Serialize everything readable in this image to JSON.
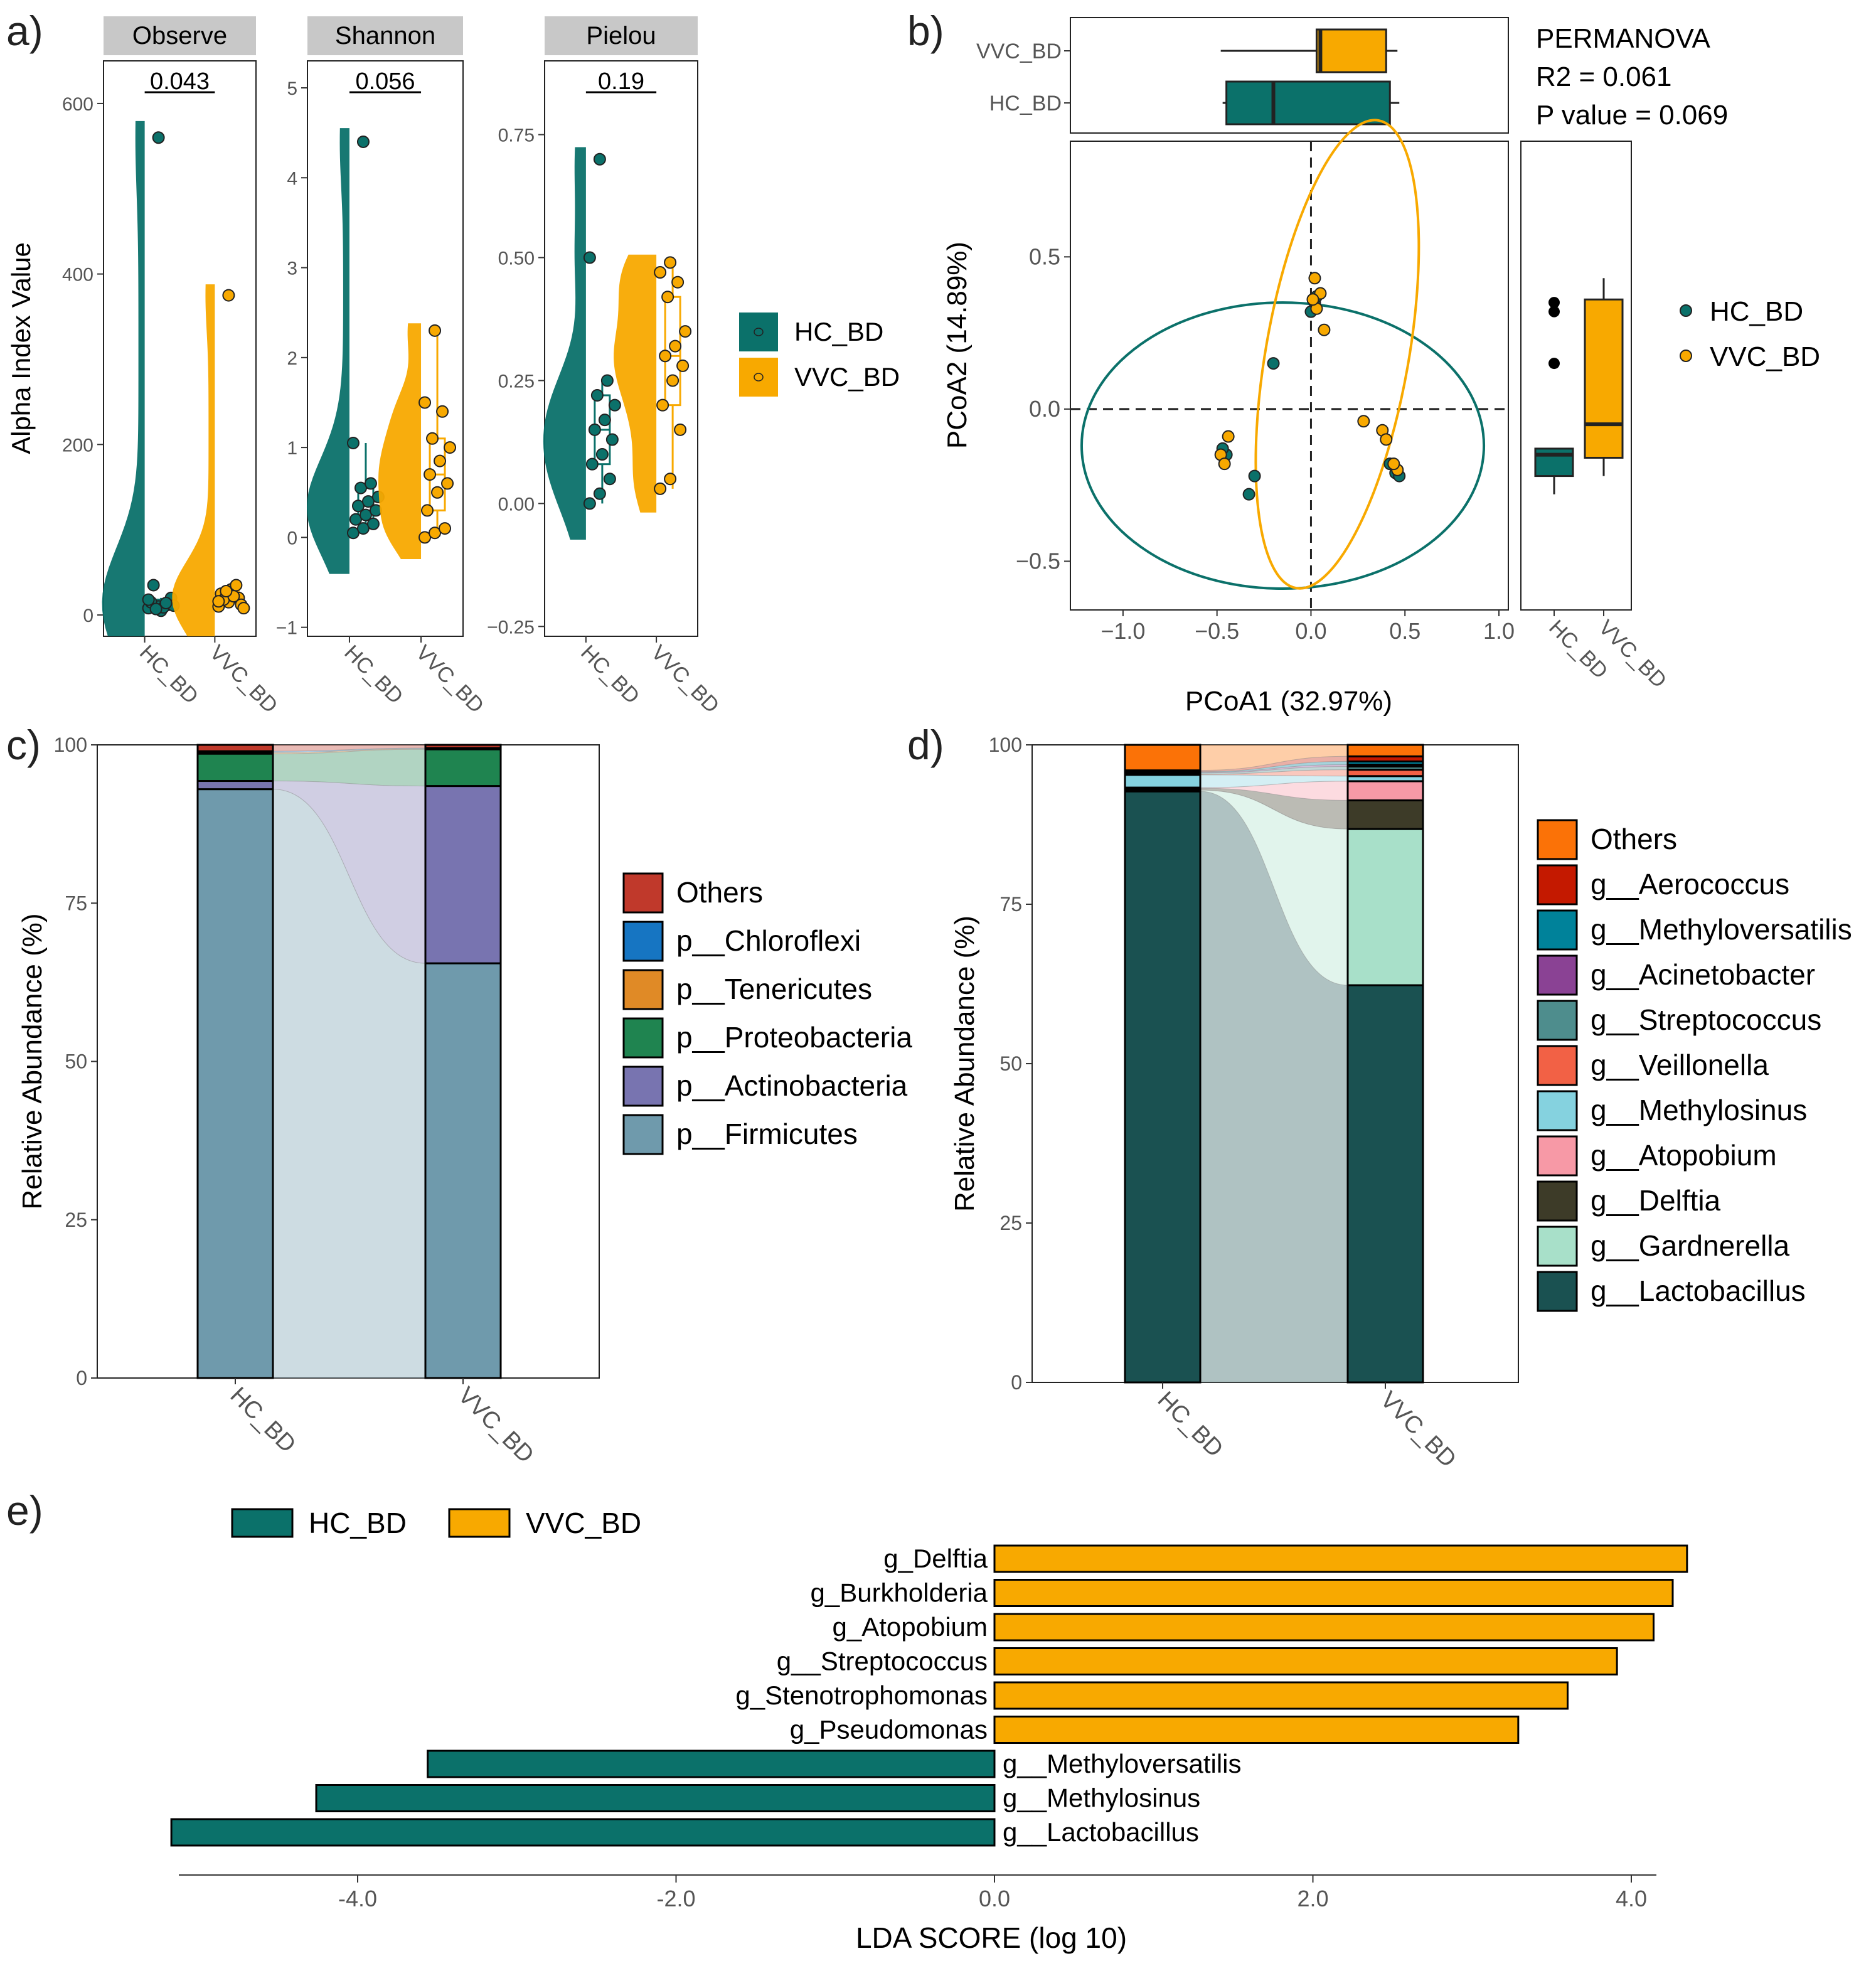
{
  "colors": {
    "hc": "#0B716A",
    "vvc": "#F8A900",
    "axis": "#333333",
    "strip": "#C8C8C8"
  },
  "panel_labels": [
    "a)",
    "b)",
    "c)",
    "d)",
    "e)"
  ],
  "chart_data": [
    {
      "id": "a",
      "type": "violin-box",
      "ylabel": "Alpha Index Value",
      "categories": [
        "HC_BD",
        "VVC_BD"
      ],
      "legend": [
        "HC_BD",
        "VVC_BD"
      ],
      "facets": [
        {
          "title": "Observe",
          "pvalue": "0.043",
          "ylim": [
            -25,
            650
          ],
          "ticks": [
            0,
            200,
            400,
            600
          ],
          "tick_labels": [
            "0",
            "200",
            "400",
            "600"
          ],
          "HC_BD": [
            8,
            10,
            12,
            15,
            5,
            20,
            35,
            9,
            11,
            7,
            14,
            18,
            560
          ],
          "VVC_BD": [
            10,
            15,
            20,
            25,
            30,
            12,
            18,
            22,
            8,
            28,
            35,
            16,
            375
          ]
        },
        {
          "title": "Shannon",
          "pvalue": "0.056",
          "ylim": [
            -1.1,
            5.3
          ],
          "ticks": [
            -1,
            0,
            1,
            2,
            3,
            4,
            5
          ],
          "tick_labels": [
            "−1",
            "0",
            "1",
            "2",
            "3",
            "4",
            "5"
          ],
          "HC_BD": [
            0.05,
            0.1,
            0.15,
            0.2,
            0.25,
            0.3,
            0.35,
            0.4,
            0.45,
            0.55,
            0.6,
            1.05,
            4.4
          ],
          "VVC_BD": [
            0.0,
            0.05,
            0.1,
            0.3,
            0.5,
            0.6,
            0.7,
            0.85,
            1.0,
            1.1,
            1.4,
            1.5,
            2.3
          ]
        },
        {
          "title": "Pielou",
          "pvalue": "0.19",
          "ylim": [
            -0.27,
            0.9
          ],
          "ticks": [
            -0.25,
            0,
            0.25,
            0.5,
            0.75
          ],
          "tick_labels": [
            "−0.25",
            "0.00",
            "0.25",
            "0.50",
            "0.75"
          ],
          "HC_BD": [
            0.0,
            0.02,
            0.05,
            0.08,
            0.1,
            0.13,
            0.15,
            0.17,
            0.2,
            0.22,
            0.25,
            0.5,
            0.7
          ],
          "VVC_BD": [
            0.03,
            0.05,
            0.15,
            0.2,
            0.25,
            0.28,
            0.3,
            0.32,
            0.35,
            0.42,
            0.45,
            0.47,
            0.49
          ]
        }
      ]
    },
    {
      "id": "b",
      "type": "scatter",
      "xlabel": "PCoA1 (32.97%)",
      "ylabel": "PCoA2 (14.89%)",
      "xlim": [
        -1.28,
        1.05
      ],
      "ylim": [
        -0.66,
        0.88
      ],
      "xticks": [
        -1,
        -0.5,
        0,
        0.5,
        1
      ],
      "xtick_labels": [
        "−1.0",
        "−0.5",
        "0.0",
        "0.5",
        "1.0"
      ],
      "yticks": [
        -0.5,
        0,
        0.5
      ],
      "ytick_labels": [
        "−0.5",
        "0.0",
        "0.5"
      ],
      "stats": [
        "PERMANOVA",
        "R2 = 0.061",
        "P value = 0.069"
      ],
      "legend": [
        "HC_BD",
        "VVC_BD"
      ],
      "series": [
        {
          "name": "HC_BD",
          "points": [
            [
              0.0,
              0.32
            ],
            [
              0.02,
              0.35
            ],
            [
              -0.2,
              0.15
            ],
            [
              -0.45,
              -0.15
            ],
            [
              -0.47,
              -0.13
            ],
            [
              -0.3,
              -0.22
            ],
            [
              -0.33,
              -0.28
            ],
            [
              0.42,
              -0.18
            ],
            [
              0.45,
              -0.21
            ],
            [
              0.47,
              -0.22
            ],
            [
              0.03,
              0.37
            ]
          ]
        },
        {
          "name": "VVC_BD",
          "points": [
            [
              0.02,
              0.43
            ],
            [
              0.05,
              0.38
            ],
            [
              0.07,
              0.26
            ],
            [
              0.03,
              0.33
            ],
            [
              -0.44,
              -0.09
            ],
            [
              -0.48,
              -0.15
            ],
            [
              -0.46,
              -0.18
            ],
            [
              0.28,
              -0.04
            ],
            [
              0.38,
              -0.07
            ],
            [
              0.4,
              -0.1
            ],
            [
              0.46,
              -0.2
            ],
            [
              0.44,
              -0.18
            ],
            [
              0.01,
              0.36
            ]
          ]
        }
      ],
      "ellipses": [
        {
          "name": "HC_BD",
          "cx": -0.15,
          "cy": -0.12,
          "rx": 1.07,
          "ry": 0.47,
          "angle_deg": 0
        },
        {
          "name": "VVC_BD",
          "cx": 0.14,
          "cy": 0.18,
          "rx": 0.38,
          "ry": 0.78,
          "angle_deg": 10
        }
      ],
      "top_boxplot": {
        "axis": "PCoA1",
        "HC_BD": {
          "min": -0.47,
          "q1": -0.45,
          "median": -0.2,
          "q3": 0.42,
          "max": 0.47
        },
        "VVC_BD": {
          "min": -0.48,
          "q1": 0.03,
          "median": 0.05,
          "q3": 0.4,
          "max": 0.46
        }
      },
      "right_boxplot": {
        "axis": "PCoA2",
        "categories": [
          "HC_BD",
          "VVC_BD"
        ],
        "HC_BD": {
          "min": -0.28,
          "q1": -0.22,
          "median": -0.15,
          "q3": -0.13,
          "max": -0.13,
          "outliers": [
            0.35,
            0.32,
            0.15
          ]
        },
        "VVC_BD": {
          "min": -0.22,
          "q1": -0.16,
          "median": -0.05,
          "q3": 0.36,
          "max": 0.43
        }
      }
    },
    {
      "id": "c",
      "type": "stacked-bar",
      "ylabel": "Relative Abundance (%)",
      "categories": [
        "HC_BD",
        "VVC_BD"
      ],
      "ylim": [
        0,
        100
      ],
      "yticks": [
        0,
        25,
        50,
        75,
        100
      ],
      "legend_order": [
        "Others",
        "p__Chloroflexi",
        "p__Tenericutes",
        "p__Proteobacteria",
        "p__Actinobacteria",
        "p__Firmicutes"
      ],
      "series": [
        {
          "name": "p__Firmicutes",
          "color": "#6F9AAC",
          "values": [
            93,
            65.5
          ]
        },
        {
          "name": "p__Actinobacteria",
          "color": "#7874B0",
          "values": [
            1.3,
            28
          ]
        },
        {
          "name": "p__Proteobacteria",
          "color": "#1F8450",
          "values": [
            4.3,
            5.8
          ]
        },
        {
          "name": "p__Tenericutes",
          "color": "#E08A26",
          "values": [
            0.2,
            0.1
          ]
        },
        {
          "name": "p__Chloroflexi",
          "color": "#1675C2",
          "values": [
            0.2,
            0.1
          ]
        },
        {
          "name": "Others",
          "color": "#C0392B",
          "values": [
            1.0,
            0.5
          ]
        }
      ]
    },
    {
      "id": "d",
      "type": "stacked-bar",
      "ylabel": "Relative Abundance (%)",
      "categories": [
        "HC_BD",
        "VVC_BD"
      ],
      "ylim": [
        0,
        100
      ],
      "yticks": [
        0,
        25,
        50,
        75,
        100
      ],
      "legend_order": [
        "Others",
        "g__Aerococcus",
        "g__Methyloversatilis",
        "g__Acinetobacter",
        "g__Streptococcus",
        "g__Veillonella",
        "g__Methylosinus",
        "g__Atopobium",
        "g__Delftia",
        "g__Gardnerella",
        "g__Lactobacillus"
      ],
      "series": [
        {
          "name": "g__Lactobacillus",
          "color": "#1A5151",
          "values": [
            92.7,
            62.3
          ]
        },
        {
          "name": "g__Gardnerella",
          "color": "#A8E0C9",
          "values": [
            0.2,
            24.5
          ]
        },
        {
          "name": "g__Delftia",
          "color": "#3D3B28",
          "values": [
            0.3,
            4.5
          ]
        },
        {
          "name": "g__Atopobium",
          "color": "#F799A6",
          "values": [
            0.1,
            3.0
          ]
        },
        {
          "name": "g__Methylosinus",
          "color": "#85D2DF",
          "values": [
            2.0,
            0.8
          ]
        },
        {
          "name": "g__Veillonella",
          "color": "#F26145",
          "values": [
            0.1,
            1.0
          ]
        },
        {
          "name": "g__Streptococcus",
          "color": "#4E8D8D",
          "values": [
            0.2,
            0.5
          ]
        },
        {
          "name": "g__Acinetobacter",
          "color": "#8A4294",
          "values": [
            0.1,
            0.3
          ]
        },
        {
          "name": "g__Methyloversatilis",
          "color": "#00829A",
          "values": [
            0.1,
            0.5
          ]
        },
        {
          "name": "g__Aerococcus",
          "color": "#C41900",
          "values": [
            0.2,
            0.8
          ]
        },
        {
          "name": "Others",
          "color": "#FB7207",
          "values": [
            4.0,
            1.8
          ]
        }
      ]
    },
    {
      "id": "e",
      "type": "bar",
      "orientation": "horizontal",
      "xlabel": "LDA SCORE (log 10)",
      "xlim": [
        -5.3,
        4.6
      ],
      "xticks": [
        -4,
        -2,
        0,
        2,
        4
      ],
      "xtick_labels": [
        "-4.0",
        "-2.0",
        "0.0",
        "2.0",
        "4.0"
      ],
      "legend": [
        "HC_BD",
        "VVC_BD"
      ],
      "categories": [
        "g_Delftia",
        "g_Burkholderia",
        "g_Atopobium",
        "g__Streptococcus",
        "g_Stenotrophomonas",
        "g_Pseudomonas",
        "g__Methyloversatilis",
        "g__Methylosinus",
        "g__Lactobacillus"
      ],
      "values": [
        4.35,
        4.26,
        4.14,
        3.91,
        3.6,
        3.29,
        -3.56,
        -4.26,
        -5.17
      ],
      "groups": [
        "VVC_BD",
        "VVC_BD",
        "VVC_BD",
        "VVC_BD",
        "VVC_BD",
        "VVC_BD",
        "HC_BD",
        "HC_BD",
        "HC_BD"
      ]
    }
  ]
}
